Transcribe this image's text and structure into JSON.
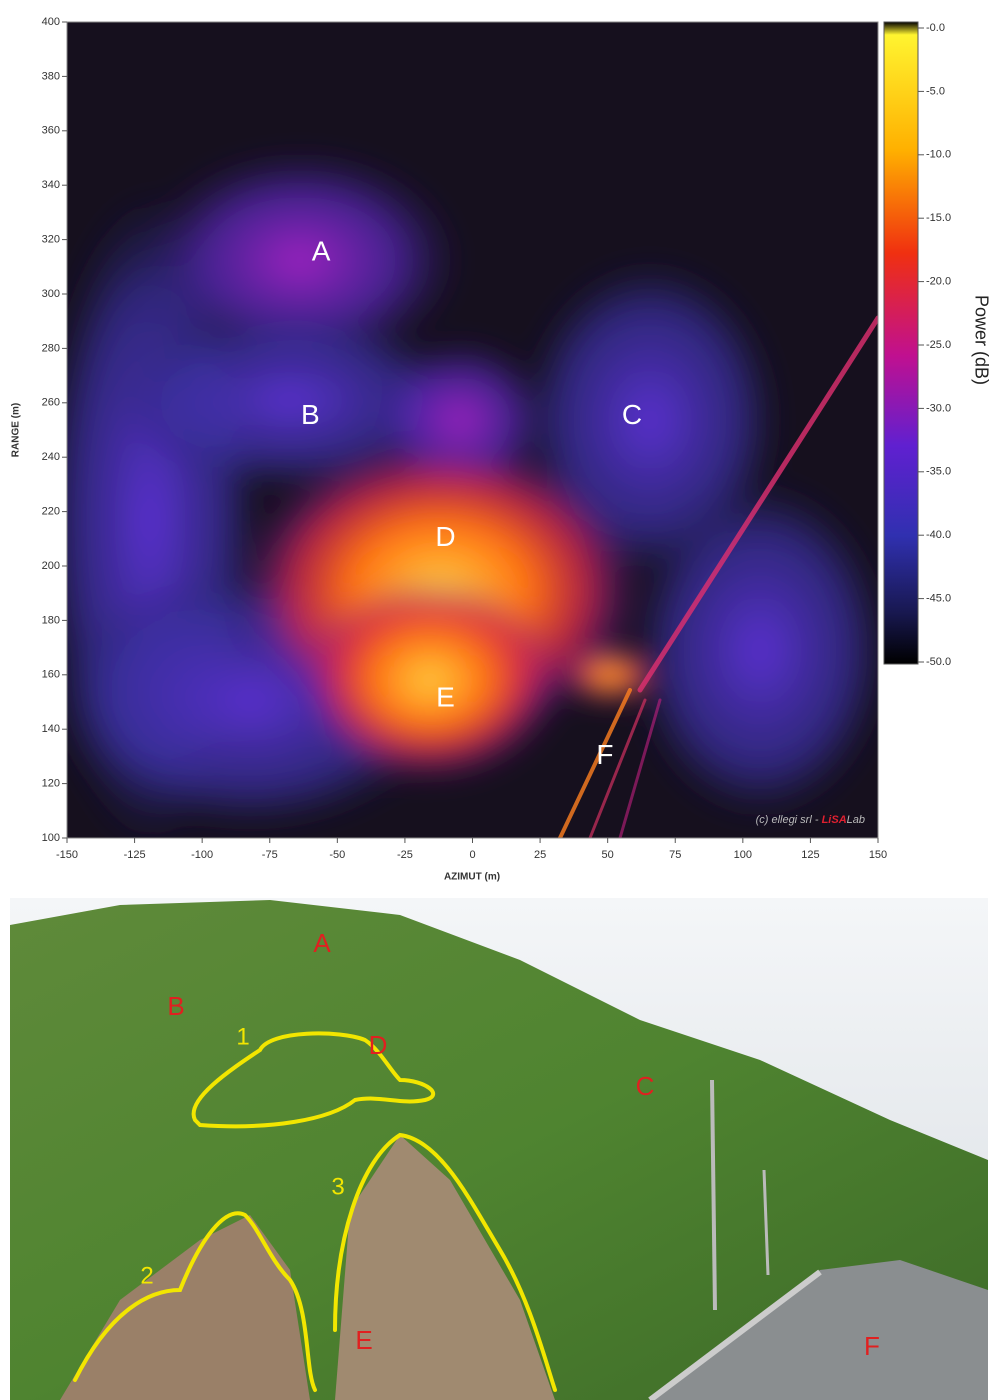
{
  "chart_data": {
    "type": "heatmap",
    "xlabel": "AZIMUT (m)",
    "ylabel": "RANGE (m)",
    "xlim": [
      -150,
      150
    ],
    "xticks": [
      -150,
      -125,
      -100,
      -75,
      -50,
      -25,
      0,
      25,
      50,
      75,
      100,
      125,
      150
    ],
    "ylim": [
      100,
      400
    ],
    "yticks": [
      100,
      120,
      140,
      160,
      180,
      200,
      220,
      240,
      260,
      280,
      300,
      320,
      340,
      360,
      380,
      400
    ],
    "colorbar": {
      "label": "Power (dB)",
      "clim": [
        -50,
        0
      ],
      "ticks": [
        {
          "value": 0,
          "label": "-0.0"
        },
        {
          "value": -5,
          "label": "-5.0"
        },
        {
          "value": -10,
          "label": "-10.0"
        },
        {
          "value": -15,
          "label": "-15.0"
        },
        {
          "value": -20,
          "label": "-20.0"
        },
        {
          "value": -25,
          "label": "-25.0"
        },
        {
          "value": -30,
          "label": "-30.0"
        },
        {
          "value": -35,
          "label": "-35.0"
        },
        {
          "value": -40,
          "label": "-40.0"
        },
        {
          "value": -45,
          "label": "-45.0"
        },
        {
          "value": -50,
          "label": "-50.0"
        }
      ]
    },
    "annotations": [
      {
        "text": "A",
        "x": -56,
        "y": 315
      },
      {
        "text": "B",
        "x": -60,
        "y": 255
      },
      {
        "text": "C",
        "x": 59,
        "y": 255
      },
      {
        "text": "D",
        "x": -10,
        "y": 210
      },
      {
        "text": "E",
        "x": -10,
        "y": 151
      },
      {
        "text": "F",
        "x": 49,
        "y": 130
      }
    ],
    "credit": [
      "(c) ellegi srl - ",
      "LiSA",
      "Lab"
    ]
  },
  "photo": {
    "labels": [
      "A",
      "B",
      "C",
      "D",
      "E",
      "F"
    ],
    "regions": [
      "1",
      "2",
      "3"
    ]
  }
}
